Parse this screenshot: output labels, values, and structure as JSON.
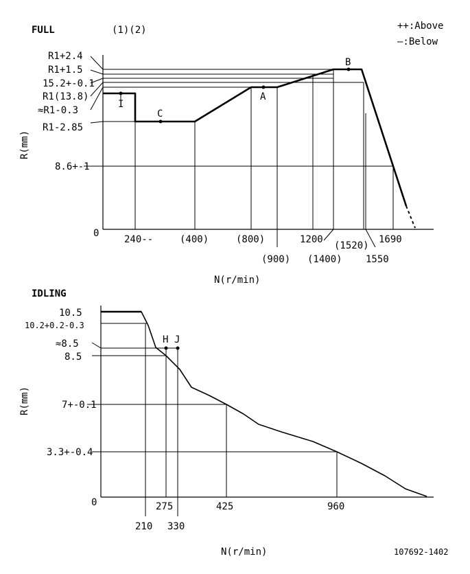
{
  "full": {
    "title": "FULL",
    "subtitle": "(1)(2)",
    "legend": [
      "++:Above",
      "—:Below"
    ],
    "y_axis_title": "R(mm)",
    "x_axis_title": "N(r/min)",
    "origin": "0",
    "y_labels": [
      "R1+2.4",
      "R1+1.5",
      "15.2+-0.1",
      "R1(13.8)",
      "≈R1-0.3",
      "R1-2.85",
      "8.6+-1"
    ],
    "x_labels": [
      "240--",
      "(400)",
      "(800)",
      "(900)",
      "1200",
      "(1400)",
      "(1520)",
      "1550",
      "1690"
    ],
    "points": [
      "I",
      "C",
      "A",
      "B"
    ]
  },
  "idling": {
    "title": "IDLING",
    "y_axis_title": "R(mm)",
    "x_axis_title": "N(r/min)",
    "origin": "0",
    "y_labels": [
      "10.5",
      "10.2+0.2-0.3",
      "≈8.5",
      "8.5",
      "7+-0.1",
      "3.3+-0.4"
    ],
    "x_labels": [
      "210",
      "275",
      "330",
      "425",
      "960"
    ],
    "points": [
      "H",
      "J"
    ]
  },
  "doc_id": "107692-1402"
}
